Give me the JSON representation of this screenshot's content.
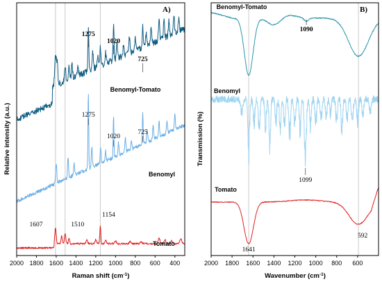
{
  "chart_data": [
    {
      "type": "line",
      "panel_label": "A)",
      "xlabel": "Raman shift (cm",
      "xlabel_sup": "-1",
      "xlabel_close": ")",
      "ylabel": "Relative intensity (a.u.)",
      "xlim": [
        2000,
        300
      ],
      "x_ticks": [
        2000,
        1800,
        1600,
        1400,
        1200,
        1000,
        800,
        600,
        400
      ],
      "gridlines_x": [
        1607,
        1510,
        1154
      ],
      "series": [
        {
          "name": "Benomyl-Tomato",
          "color": "#0d5b82",
          "offset": 0,
          "peak_labels": [
            {
              "x": 1275,
              "text": "1275",
              "bold": true
            },
            {
              "x": 1020,
              "text": "1020",
              "bold": true
            },
            {
              "x": 725,
              "text": "725",
              "bold": true
            }
          ]
        },
        {
          "name": "Benomyl",
          "color": "#6aaee6",
          "offset": 0,
          "peak_labels": [
            {
              "x": 1275,
              "text": "1275",
              "bold": false
            },
            {
              "x": 1020,
              "text": "1020",
              "bold": false
            },
            {
              "x": 725,
              "text": "725",
              "bold": false
            }
          ]
        },
        {
          "name": "Tomato",
          "color": "#e01e1e",
          "offset": 0,
          "peak_labels": [
            {
              "x": 1607,
              "text": "1607",
              "bold": false
            },
            {
              "x": 1510,
              "text": "1510",
              "bold": false
            },
            {
              "x": 1154,
              "text": "1154",
              "bold": false
            }
          ]
        }
      ]
    },
    {
      "type": "line",
      "panel_label": "B)",
      "xlabel": "Wavenumber (cm",
      "xlabel_sup": "-1",
      "xlabel_close": ")",
      "ylabel": "Transmission (%)",
      "xlim": [
        2000,
        400
      ],
      "x_ticks": [
        2000,
        1800,
        1600,
        1400,
        1200,
        1000,
        800,
        600
      ],
      "gridlines_x": [
        1641,
        592
      ],
      "series": [
        {
          "name": "Benomyl-Tomato",
          "color": "#2a95a8",
          "peak_labels": [
            {
              "x": 1090,
              "text": "1090",
              "bold": true
            }
          ]
        },
        {
          "name": "Benomyl",
          "color": "#9fd4f0",
          "peak_labels": [
            {
              "x": 1099,
              "text": "1099",
              "bold": false
            }
          ]
        },
        {
          "name": "Tomato",
          "color": "#e01e1e",
          "peak_labels": [
            {
              "x": 1641,
              "text": "1641",
              "bold": false
            },
            {
              "x": 592,
              "text": "592",
              "bold": false
            }
          ]
        }
      ]
    }
  ]
}
